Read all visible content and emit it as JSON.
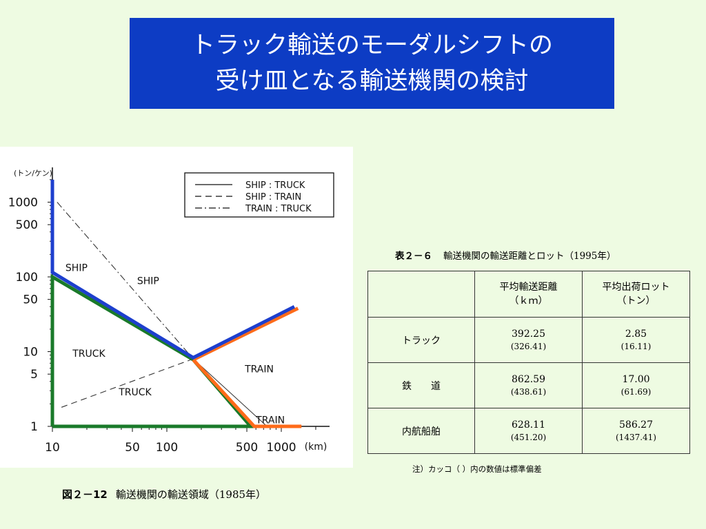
{
  "title": {
    "line1": "トラック輸送のモーダルシフトの",
    "line2": "受け皿となる輸送機関の検討"
  },
  "figure": {
    "number": "図２－12",
    "caption": "輸送機関の輸送領域（1985年）"
  },
  "chart_data": {
    "type": "line",
    "y_unit_label": "(トン/ケン)",
    "x_unit_label": "(km)",
    "x_scale": "log",
    "y_scale": "log",
    "x_ticks": [
      "10",
      "50",
      "100",
      "500",
      "1000"
    ],
    "y_ticks": [
      "1000",
      "500",
      "100",
      "50",
      "10",
      "5",
      "1"
    ],
    "legend": [
      {
        "style": "solid",
        "label": "SHIP : TRUCK"
      },
      {
        "style": "dashed",
        "label": "SHIP : TRAIN"
      },
      {
        "style": "dashdot",
        "label": "TRAIN : TRUCK"
      }
    ],
    "legend_position": "top-right",
    "region_labels": [
      {
        "text": "SHIP",
        "x": 13,
        "y": 120
      },
      {
        "text": "SHIP",
        "x": 55,
        "y": 80
      },
      {
        "text": "TRUCK",
        "x": 15,
        "y": 8.5
      },
      {
        "text": "TRUCK",
        "x": 38,
        "y": 2.6
      },
      {
        "text": "TRAIN",
        "x": 480,
        "y": 5.3
      },
      {
        "text": "TRAIN",
        "x": 600,
        "y": 1.1
      }
    ],
    "series": [
      {
        "name": "SHIP : TRUCK",
        "style": "solid",
        "points": [
          [
            10,
            110
          ],
          [
            170,
            8
          ],
          [
            750,
            1
          ]
        ]
      },
      {
        "name": "SHIP : TRAIN",
        "style": "dashed",
        "points": [
          [
            12,
            1.8
          ],
          [
            170,
            8
          ]
        ]
      },
      {
        "name": "TRAIN : TRUCK",
        "style": "dashdot",
        "points": [
          [
            11,
            1000
          ],
          [
            170,
            8
          ]
        ]
      }
    ],
    "highlights": [
      {
        "color": "#1d3fce",
        "points": [
          [
            10,
            2000
          ],
          [
            10,
            115
          ],
          [
            170,
            8.3
          ],
          [
            1300,
            40
          ]
        ]
      },
      {
        "color": "#ff6b1a",
        "points": [
          [
            170,
            7.8
          ],
          [
            580,
            1
          ],
          [
            1500,
            1
          ]
        ]
      },
      {
        "color": "#ff6b1a",
        "points": [
          [
            170,
            7.8
          ],
          [
            1400,
            38
          ]
        ]
      },
      {
        "color": "#1a7a2a",
        "points": [
          [
            10,
            1
          ],
          [
            10,
            100
          ],
          [
            170,
            7.8
          ],
          [
            540,
            1
          ],
          [
            10,
            1
          ]
        ]
      }
    ]
  },
  "table": {
    "number": "表２－６",
    "caption": "輸送機関の輸送距離とロット（1995年）",
    "headers": [
      {
        "line1": "",
        "line2": ""
      },
      {
        "line1": "平均輸送距離",
        "line2": "（ｋｍ）"
      },
      {
        "line1": "平均出荷ロット",
        "line2": "（トン）"
      }
    ],
    "rows": [
      {
        "label": "トラック",
        "dist": "392.25",
        "dist_sd": "(326.41)",
        "lot": "2.85",
        "lot_sd": "(16.11)"
      },
      {
        "label": "鉄　　道",
        "dist": "862.59",
        "dist_sd": "(438.61)",
        "lot": "17.00",
        "lot_sd": "(61.69)"
      },
      {
        "label": "内航船舶",
        "dist": "628.11",
        "dist_sd": "(451.20)",
        "lot": "586.27",
        "lot_sd": "(1437.41)"
      }
    ],
    "note": "注）カッコ（  ）内の数値は標準偏差"
  },
  "colors": {
    "background": "#eefbe2",
    "title_bg": "#0d3cc4",
    "blue_line": "#1d3fce",
    "orange_line": "#ff6b1a",
    "green_line": "#1a7a2a"
  }
}
